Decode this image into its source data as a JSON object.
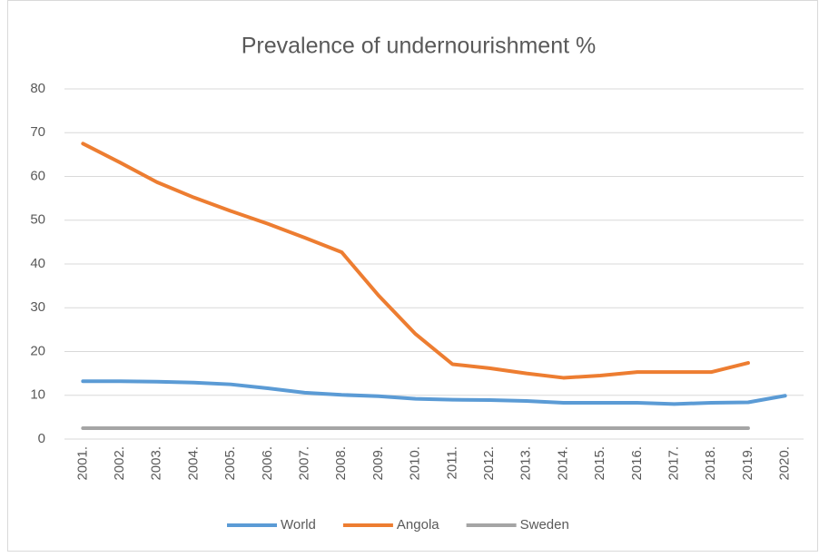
{
  "chart_data": {
    "type": "line",
    "title": "Prevalence of undernourishment %",
    "categories": [
      "2001.",
      "2002.",
      "2003.",
      "2004.",
      "2005.",
      "2006.",
      "2007.",
      "2008.",
      "2009.",
      "2010.",
      "2011.",
      "2012.",
      "2013.",
      "2014.",
      "2015.",
      "2016.",
      "2017.",
      "2018.",
      "2019.",
      "2020."
    ],
    "series": [
      {
        "name": "World",
        "color": "#5b9bd5",
        "values": [
          13.2,
          13.2,
          13.1,
          12.9,
          12.5,
          11.6,
          10.6,
          10.1,
          9.8,
          9.2,
          9.0,
          8.9,
          8.7,
          8.3,
          8.3,
          8.3,
          8.0,
          8.3,
          8.4,
          9.9
        ]
      },
      {
        "name": "Angola",
        "color": "#ed7d31",
        "values": [
          67.5,
          63.2,
          58.7,
          55.2,
          52.1,
          49.2,
          46.0,
          42.7,
          32.8,
          24.0,
          17.1,
          16.2,
          15.0,
          14.0,
          14.5,
          15.3,
          15.3,
          15.3,
          17.4,
          null
        ]
      },
      {
        "name": "Sweden",
        "color": "#a5a5a5",
        "values": [
          2.5,
          2.5,
          2.5,
          2.5,
          2.5,
          2.5,
          2.5,
          2.5,
          2.5,
          2.5,
          2.5,
          2.5,
          2.5,
          2.5,
          2.5,
          2.5,
          2.5,
          2.5,
          2.5,
          null
        ]
      }
    ],
    "ylim": [
      0,
      80
    ],
    "yticks": [
      0,
      10,
      20,
      30,
      40,
      50,
      60,
      70,
      80
    ],
    "grid": true,
    "legend": "bottom"
  }
}
